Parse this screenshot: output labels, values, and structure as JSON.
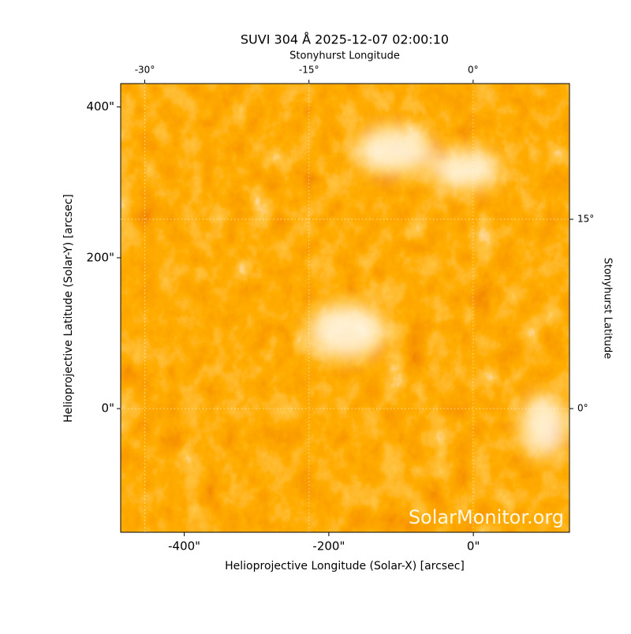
{
  "chart_data": {
    "type": "image",
    "title": "SUVI 304 Å 2025-12-07 02:00:10",
    "xlabel": "Helioprojective Longitude (Solar-X) [arcsec]",
    "ylabel": "Helioprojective Latitude (Solar-Y) [arcsec]",
    "x2label": "Stonyhurst Longitude",
    "y2label": "Stonyhurst Latitude",
    "annotation": "SolarMonitor.org",
    "xlim": [
      -488,
      133
    ],
    "ylim": [
      -164,
      431
    ],
    "xticks": [
      {
        "value": -400,
        "label": "-400\""
      },
      {
        "value": -200,
        "label": "-200\""
      },
      {
        "value": 0,
        "label": "0\""
      }
    ],
    "yticks": [
      {
        "value": 0,
        "label": "0\""
      },
      {
        "value": 200,
        "label": "200\""
      },
      {
        "value": 400,
        "label": "400\""
      }
    ],
    "x2lim": [
      -32.2,
      8.8
    ],
    "y2lim": [
      -9.8,
      25.75
    ],
    "x2ticks": [
      {
        "value": -30,
        "label": "-30°"
      },
      {
        "value": -15,
        "label": "-15°"
      },
      {
        "value": 0,
        "label": "0°"
      }
    ],
    "y2ticks": [
      {
        "value": 0,
        "label": "0°"
      },
      {
        "value": 15,
        "label": "15°"
      }
    ],
    "grid": true
  }
}
